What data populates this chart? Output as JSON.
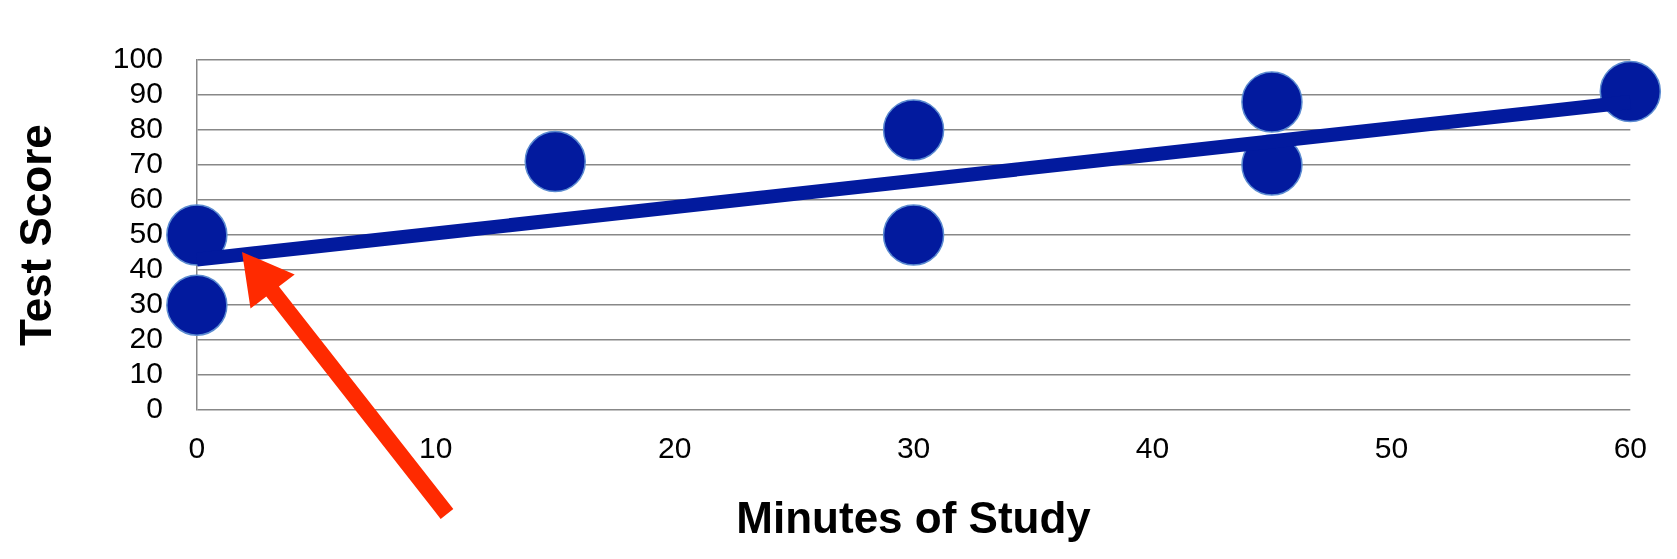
{
  "chart_data": {
    "type": "scatter",
    "xlabel": "Minutes of Study",
    "ylabel": "Test Score",
    "series": [
      {
        "type": "scatter",
        "color": "#021a9e",
        "marker": "circle",
        "x": [
          0,
          0,
          15,
          30,
          30,
          45,
          45,
          60
        ],
        "values": [
          50,
          30,
          71,
          80,
          50,
          88,
          70,
          91
        ]
      },
      {
        "type": "line",
        "color": "#021a9e",
        "marker": "none",
        "x": [
          0,
          60
        ],
        "values": [
          43,
          88
        ]
      }
    ],
    "xlim": [
      0,
      60
    ],
    "xticks": [
      0,
      10,
      20,
      30,
      40,
      50,
      60
    ],
    "ylim": [
      0,
      100
    ],
    "yticks": [
      0,
      10,
      20,
      30,
      40,
      50,
      60,
      70,
      80,
      90,
      100
    ],
    "grid": "y",
    "legend": false
  }
}
